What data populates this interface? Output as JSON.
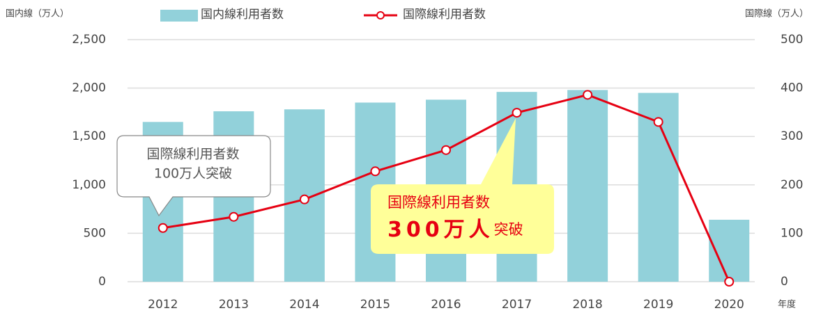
{
  "chart_data": {
    "type": "bar_line",
    "y_label": "国内線（万人）",
    "y2_label": "国際線（万人）",
    "x_label": "年度",
    "categories": [
      "2012",
      "2013",
      "2014",
      "2015",
      "2016",
      "2017",
      "2018",
      "2019",
      "2020"
    ],
    "series": [
      {
        "name": "国内線利用者数",
        "type": "bar",
        "color": "#92d1da",
        "values": [
          1650,
          1760,
          1780,
          1850,
          1880,
          1960,
          1980,
          1950,
          640
        ]
      },
      {
        "name": "国際線利用者数",
        "type": "line",
        "axis": "y2",
        "color": "#e60012",
        "values": [
          111,
          134,
          170,
          228,
          272,
          349,
          386,
          330,
          0
        ]
      }
    ],
    "ylim": [
      0,
      2500
    ],
    "yticks": [
      0,
      500,
      {
        "value": 1000,
        "label": "1,000"
      },
      {
        "value": 1500,
        "label": "1,500"
      },
      {
        "value": 2000,
        "label": "2,000"
      },
      {
        "value": 2500,
        "label": "2,500"
      }
    ],
    "y2lim": [
      0,
      500
    ],
    "y2ticks": [
      0,
      100,
      200,
      300,
      400,
      500
    ],
    "grid": true,
    "annotations": [
      {
        "lines": [
          "国際線利用者数",
          "100万人突破"
        ]
      },
      {
        "line1": "国際線利用者数",
        "emphasis": "300万人",
        "suffix": "突破"
      }
    ]
  }
}
